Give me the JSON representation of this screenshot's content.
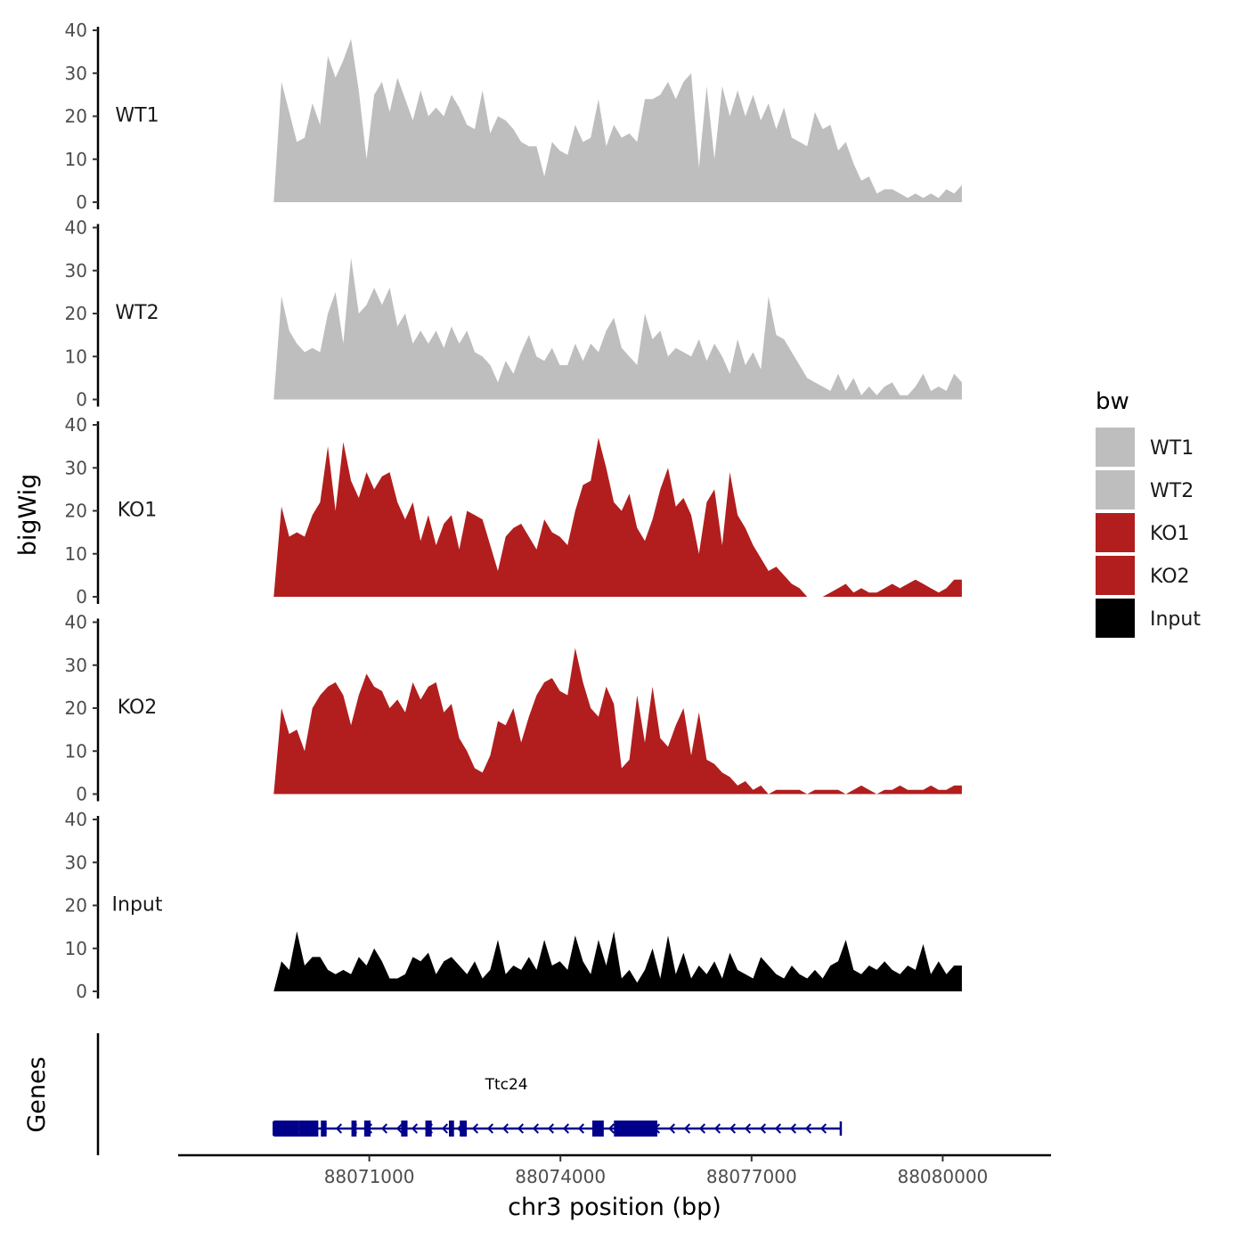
{
  "chart_data": {
    "type": "area",
    "subtype": "genome-track-coverage",
    "x_axis": {
      "label": "chr3 position (bp)",
      "range": [
        88068000,
        88081700
      ],
      "ticks": [
        88071000,
        88074000,
        88077000,
        88080000
      ]
    },
    "y_axis": {
      "label": "bigWig",
      "range": [
        0,
        40
      ],
      "ticks": [
        0,
        10,
        20,
        30,
        40
      ]
    },
    "data_range": [
      88069500,
      88080300
    ],
    "legend": {
      "title": "bw",
      "position": "right",
      "entries": [
        {
          "label": "WT1",
          "color": "#bebebe"
        },
        {
          "label": "WT2",
          "color": "#bebebe"
        },
        {
          "label": "KO1",
          "color": "#b21e1e"
        },
        {
          "label": "KO2",
          "color": "#b21e1e"
        },
        {
          "label": "Input",
          "color": "#000000"
        }
      ]
    },
    "series": [
      {
        "name": "WT1",
        "color": "#bebebe",
        "values": [
          0,
          28,
          21,
          14,
          15,
          23,
          18,
          34,
          29,
          33,
          38,
          26,
          10,
          25,
          28,
          21,
          29,
          24,
          19,
          26,
          20,
          22,
          20,
          25,
          22,
          18,
          17,
          26,
          16,
          20,
          19,
          17,
          14,
          13,
          13,
          6,
          14,
          12,
          11,
          18,
          14,
          15,
          24,
          13,
          18,
          15,
          16,
          14,
          24,
          24,
          25,
          28,
          24,
          28,
          30,
          8,
          27,
          10,
          27,
          20,
          26,
          20,
          25,
          19,
          23,
          17,
          22,
          15,
          14,
          13,
          21,
          17,
          18,
          12,
          14,
          9,
          5,
          6,
          2,
          3,
          3,
          2,
          1,
          2,
          1,
          2,
          1,
          3,
          2,
          4
        ]
      },
      {
        "name": "WT2",
        "color": "#bebebe",
        "values": [
          0,
          24,
          16,
          13,
          11,
          12,
          11,
          20,
          25,
          13,
          33,
          20,
          22,
          26,
          22,
          26,
          17,
          20,
          13,
          16,
          13,
          16,
          12,
          17,
          13,
          16,
          11,
          10,
          8,
          4,
          9,
          6,
          11,
          15,
          10,
          9,
          12,
          8,
          8,
          13,
          9,
          13,
          11,
          16,
          19,
          12,
          10,
          8,
          20,
          14,
          16,
          10,
          12,
          11,
          10,
          14,
          9,
          13,
          10,
          6,
          14,
          8,
          11,
          7,
          24,
          15,
          14,
          11,
          8,
          5,
          4,
          3,
          2,
          6,
          2,
          5,
          1,
          3,
          1,
          3,
          4,
          1,
          1,
          3,
          6,
          2,
          3,
          2,
          6,
          4
        ]
      },
      {
        "name": "KO1",
        "color": "#b21e1e",
        "values": [
          0,
          21,
          14,
          15,
          14,
          19,
          22,
          35,
          20,
          36,
          27,
          23,
          29,
          25,
          28,
          29,
          22,
          18,
          22,
          13,
          19,
          12,
          17,
          19,
          11,
          20,
          19,
          18,
          12,
          6,
          14,
          16,
          17,
          14,
          11,
          18,
          15,
          14,
          12,
          20,
          26,
          27,
          37,
          30,
          22,
          20,
          24,
          16,
          13,
          18,
          25,
          30,
          21,
          23,
          19,
          10,
          22,
          25,
          12,
          29,
          19,
          16,
          12,
          9,
          6,
          7,
          5,
          3,
          2,
          0,
          0,
          0,
          1,
          2,
          3,
          1,
          2,
          1,
          1,
          2,
          3,
          2,
          3,
          4,
          3,
          2,
          1,
          2,
          4,
          4
        ]
      },
      {
        "name": "KO2",
        "color": "#b21e1e",
        "values": [
          0,
          20,
          14,
          15,
          10,
          20,
          23,
          25,
          26,
          23,
          16,
          23,
          28,
          25,
          24,
          20,
          22,
          19,
          26,
          22,
          25,
          26,
          19,
          21,
          13,
          10,
          6,
          5,
          9,
          17,
          16,
          20,
          12,
          18,
          23,
          26,
          27,
          24,
          23,
          34,
          26,
          20,
          18,
          25,
          21,
          6,
          8,
          23,
          12,
          25,
          13,
          11,
          16,
          20,
          9,
          19,
          8,
          7,
          5,
          4,
          2,
          3,
          1,
          2,
          0,
          1,
          1,
          1,
          1,
          0,
          1,
          1,
          1,
          1,
          0,
          1,
          2,
          1,
          0,
          1,
          1,
          2,
          1,
          1,
          1,
          2,
          1,
          1,
          2,
          2
        ]
      },
      {
        "name": "Input",
        "color": "#000000",
        "values": [
          0,
          7,
          5,
          14,
          6,
          8,
          8,
          5,
          4,
          5,
          4,
          8,
          6,
          10,
          7,
          3,
          3,
          4,
          8,
          7,
          9,
          4,
          7,
          8,
          6,
          4,
          7,
          3,
          5,
          12,
          4,
          6,
          5,
          8,
          5,
          12,
          6,
          7,
          5,
          13,
          7,
          4,
          12,
          6,
          14,
          3,
          5,
          2,
          5,
          10,
          3,
          13,
          4,
          9,
          3,
          6,
          4,
          7,
          3,
          9,
          5,
          4,
          3,
          8,
          6,
          4,
          3,
          6,
          4,
          3,
          5,
          3,
          6,
          7,
          12,
          5,
          4,
          6,
          5,
          7,
          5,
          4,
          6,
          5,
          11,
          4,
          7,
          4,
          6,
          6
        ]
      }
    ],
    "genes": [
      {
        "name": "Ttc24",
        "color": "#00008b",
        "start": 88069500,
        "end": 88078400,
        "strand": "-",
        "exons": [
          [
            88069500,
            88069900
          ],
          [
            88069900,
            88070200
          ],
          [
            88070240,
            88070330
          ],
          [
            88070720,
            88070800
          ],
          [
            88070920,
            88071020
          ],
          [
            88071500,
            88071600
          ],
          [
            88071880,
            88071980
          ],
          [
            88072250,
            88072330
          ],
          [
            88072420,
            88072530
          ],
          [
            88074500,
            88074680
          ],
          [
            88074840,
            88075520
          ]
        ]
      }
    ]
  }
}
